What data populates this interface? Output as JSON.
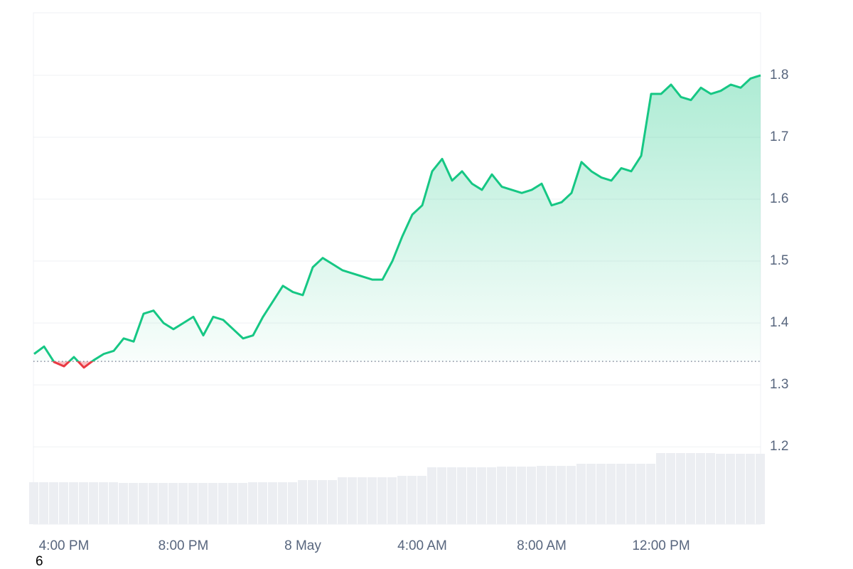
{
  "chart_data": {
    "type": "line",
    "categories": [
      null,
      null,
      null,
      "4:00 PM",
      null,
      null,
      null,
      null,
      null,
      null,
      null,
      null,
      null,
      null,
      null,
      "8:00 PM",
      null,
      null,
      null,
      null,
      null,
      null,
      null,
      null,
      null,
      null,
      null,
      "8 May",
      null,
      null,
      null,
      null,
      null,
      null,
      null,
      null,
      null,
      null,
      null,
      "4:00 AM",
      null,
      null,
      null,
      null,
      null,
      null,
      null,
      null,
      null,
      null,
      null,
      "8:00 AM",
      null,
      null,
      null,
      null,
      null,
      null,
      null,
      null,
      null,
      null,
      null,
      "12:00 PM",
      null,
      null,
      null,
      null,
      null,
      null,
      null,
      null,
      null,
      null
    ],
    "series": [
      {
        "color": "#16c784",
        "down_color": "#ea3943",
        "values": [
          1.35,
          1.362,
          1.337,
          1.33,
          1.345,
          1.328,
          1.34,
          1.35,
          1.355,
          1.375,
          1.37,
          1.415,
          1.42,
          1.4,
          1.39,
          1.4,
          1.41,
          1.38,
          1.41,
          1.405,
          1.39,
          1.375,
          1.38,
          1.41,
          1.435,
          1.46,
          1.45,
          1.445,
          1.49,
          1.505,
          1.495,
          1.485,
          1.48,
          1.475,
          1.47,
          1.47,
          1.5,
          1.54,
          1.575,
          1.59,
          1.645,
          1.665,
          1.63,
          1.645,
          1.625,
          1.615,
          1.64,
          1.62,
          1.615,
          1.61,
          1.615,
          1.625,
          1.59,
          1.595,
          1.61,
          1.66,
          1.645,
          1.635,
          1.63,
          1.65,
          1.645,
          1.67,
          1.77,
          1.77,
          1.785,
          1.765,
          1.76,
          1.78,
          1.77,
          1.775,
          1.785,
          1.78,
          1.795,
          1.8
        ]
      }
    ],
    "baseline": 1.338,
    "volume": {
      "color": "#eceef2",
      "values": [
        59,
        59,
        59,
        59,
        59,
        59,
        59,
        59,
        59,
        58,
        58,
        58,
        58,
        58,
        58,
        58,
        58,
        58,
        58,
        58,
        58,
        58,
        59,
        59,
        59,
        59,
        59,
        62,
        62,
        62,
        62,
        66,
        66,
        66,
        66,
        66,
        66,
        68,
        68,
        68,
        80,
        80,
        80,
        80,
        80,
        80,
        80,
        81,
        81,
        81,
        81,
        82,
        82,
        82,
        82,
        85,
        85,
        85,
        85,
        85,
        85,
        85,
        85,
        100,
        100,
        100,
        100,
        100,
        100,
        99,
        99,
        99,
        99,
        99
      ]
    },
    "ylim": [
      1.075,
      1.901
    ],
    "yticks": [
      1.2,
      1.3,
      1.4,
      1.5,
      1.6,
      1.7,
      1.8
    ],
    "grid": true,
    "page_text": "6"
  }
}
